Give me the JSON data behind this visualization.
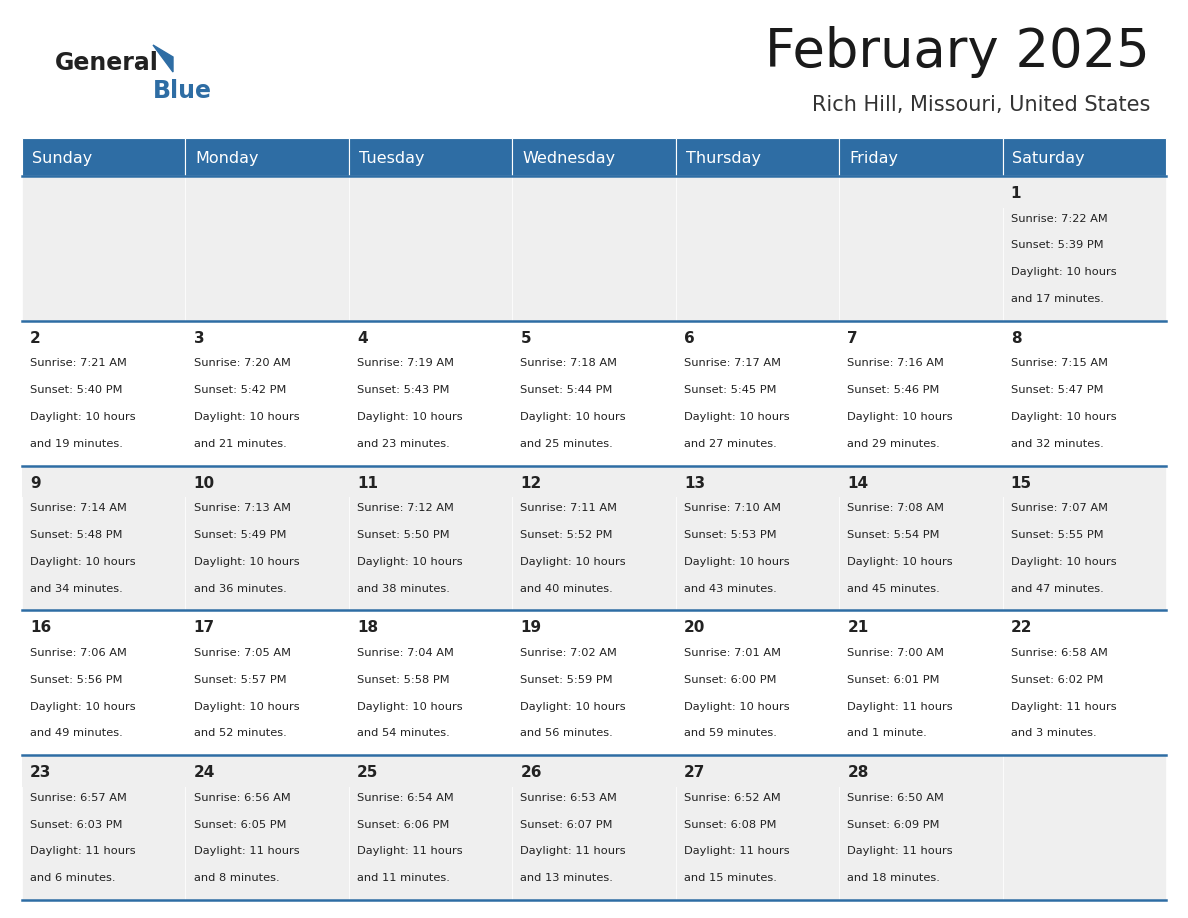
{
  "title": "February 2025",
  "subtitle": "Rich Hill, Missouri, United States",
  "header_bg_color": "#2E6DA4",
  "header_text_color": "#FFFFFF",
  "row_bg_odd": "#EFEFEF",
  "row_bg_even": "#FFFFFF",
  "day_num_bg_odd": "#EFEFEF",
  "day_num_bg_even": "#FFFFFF",
  "separator_color": "#2E6DA4",
  "text_color": "#222222",
  "days_of_week": [
    "Sunday",
    "Monday",
    "Tuesday",
    "Wednesday",
    "Thursday",
    "Friday",
    "Saturday"
  ],
  "calendar_data": [
    [
      null,
      null,
      null,
      null,
      null,
      null,
      {
        "day": 1,
        "sunrise": "7:22 AM",
        "sunset": "5:39 PM",
        "daylight": "10 hours and 17 minutes."
      }
    ],
    [
      {
        "day": 2,
        "sunrise": "7:21 AM",
        "sunset": "5:40 PM",
        "daylight": "10 hours and 19 minutes."
      },
      {
        "day": 3,
        "sunrise": "7:20 AM",
        "sunset": "5:42 PM",
        "daylight": "10 hours and 21 minutes."
      },
      {
        "day": 4,
        "sunrise": "7:19 AM",
        "sunset": "5:43 PM",
        "daylight": "10 hours and 23 minutes."
      },
      {
        "day": 5,
        "sunrise": "7:18 AM",
        "sunset": "5:44 PM",
        "daylight": "10 hours and 25 minutes."
      },
      {
        "day": 6,
        "sunrise": "7:17 AM",
        "sunset": "5:45 PM",
        "daylight": "10 hours and 27 minutes."
      },
      {
        "day": 7,
        "sunrise": "7:16 AM",
        "sunset": "5:46 PM",
        "daylight": "10 hours and 29 minutes."
      },
      {
        "day": 8,
        "sunrise": "7:15 AM",
        "sunset": "5:47 PM",
        "daylight": "10 hours and 32 minutes."
      }
    ],
    [
      {
        "day": 9,
        "sunrise": "7:14 AM",
        "sunset": "5:48 PM",
        "daylight": "10 hours and 34 minutes."
      },
      {
        "day": 10,
        "sunrise": "7:13 AM",
        "sunset": "5:49 PM",
        "daylight": "10 hours and 36 minutes."
      },
      {
        "day": 11,
        "sunrise": "7:12 AM",
        "sunset": "5:50 PM",
        "daylight": "10 hours and 38 minutes."
      },
      {
        "day": 12,
        "sunrise": "7:11 AM",
        "sunset": "5:52 PM",
        "daylight": "10 hours and 40 minutes."
      },
      {
        "day": 13,
        "sunrise": "7:10 AM",
        "sunset": "5:53 PM",
        "daylight": "10 hours and 43 minutes."
      },
      {
        "day": 14,
        "sunrise": "7:08 AM",
        "sunset": "5:54 PM",
        "daylight": "10 hours and 45 minutes."
      },
      {
        "day": 15,
        "sunrise": "7:07 AM",
        "sunset": "5:55 PM",
        "daylight": "10 hours and 47 minutes."
      }
    ],
    [
      {
        "day": 16,
        "sunrise": "7:06 AM",
        "sunset": "5:56 PM",
        "daylight": "10 hours and 49 minutes."
      },
      {
        "day": 17,
        "sunrise": "7:05 AM",
        "sunset": "5:57 PM",
        "daylight": "10 hours and 52 minutes."
      },
      {
        "day": 18,
        "sunrise": "7:04 AM",
        "sunset": "5:58 PM",
        "daylight": "10 hours and 54 minutes."
      },
      {
        "day": 19,
        "sunrise": "7:02 AM",
        "sunset": "5:59 PM",
        "daylight": "10 hours and 56 minutes."
      },
      {
        "day": 20,
        "sunrise": "7:01 AM",
        "sunset": "6:00 PM",
        "daylight": "10 hours and 59 minutes."
      },
      {
        "day": 21,
        "sunrise": "7:00 AM",
        "sunset": "6:01 PM",
        "daylight": "11 hours and 1 minute."
      },
      {
        "day": 22,
        "sunrise": "6:58 AM",
        "sunset": "6:02 PM",
        "daylight": "11 hours and 3 minutes."
      }
    ],
    [
      {
        "day": 23,
        "sunrise": "6:57 AM",
        "sunset": "6:03 PM",
        "daylight": "11 hours and 6 minutes."
      },
      {
        "day": 24,
        "sunrise": "6:56 AM",
        "sunset": "6:05 PM",
        "daylight": "11 hours and 8 minutes."
      },
      {
        "day": 25,
        "sunrise": "6:54 AM",
        "sunset": "6:06 PM",
        "daylight": "11 hours and 11 minutes."
      },
      {
        "day": 26,
        "sunrise": "6:53 AM",
        "sunset": "6:07 PM",
        "daylight": "11 hours and 13 minutes."
      },
      {
        "day": 27,
        "sunrise": "6:52 AM",
        "sunset": "6:08 PM",
        "daylight": "11 hours and 15 minutes."
      },
      {
        "day": 28,
        "sunrise": "6:50 AM",
        "sunset": "6:09 PM",
        "daylight": "11 hours and 18 minutes."
      },
      null
    ]
  ],
  "logo_general_color": "#222222",
  "logo_blue_color": "#2E6DA4",
  "logo_triangle_color": "#2E6DA4"
}
